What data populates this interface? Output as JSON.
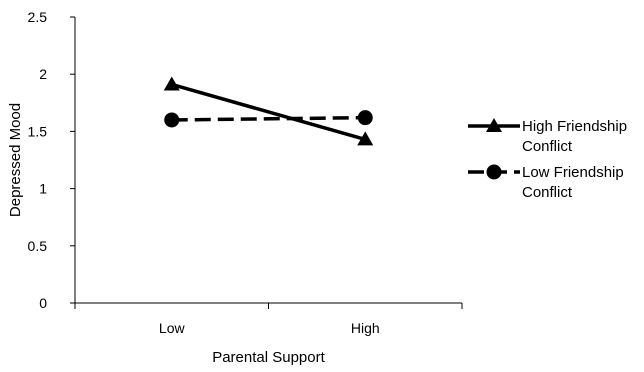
{
  "chart_data": {
    "type": "line",
    "categories": [
      "Low",
      "High"
    ],
    "series": [
      {
        "name": "High Friendship Conflict",
        "legend_lines": [
          "High Friendship",
          "Conflict"
        ],
        "values": [
          1.91,
          1.43
        ],
        "marker": "triangle",
        "line_style": "solid",
        "color": "#000000"
      },
      {
        "name": "Low Friendship Conflict",
        "legend_lines": [
          "Low Friendship",
          "Conflict"
        ],
        "values": [
          1.6,
          1.62
        ],
        "marker": "circle",
        "line_style": "dashed",
        "color": "#000000"
      }
    ],
    "xlabel": "Parental Support",
    "ylabel": "Depressed Mood",
    "ylim": [
      0,
      2.5
    ],
    "yticks": [
      "0",
      "0.5",
      "1",
      "1.5",
      "2",
      "2.5"
    ],
    "grid": false,
    "legend_position": "right"
  }
}
